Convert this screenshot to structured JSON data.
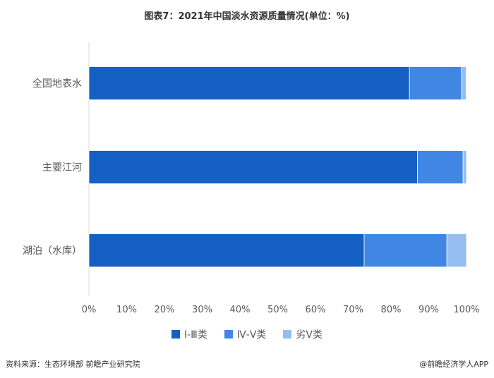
{
  "title": "图表7：2021年中国淡水资源质量情况(单位：%)",
  "source": "资料来源：生态环境部 前瞻产业研究院",
  "brand": "@前瞻经济学人APP",
  "chart_data": {
    "type": "bar",
    "orientation": "horizontal",
    "stacked": true,
    "categories": [
      "全国地表水",
      "主要江河",
      "湖泊（水库）"
    ],
    "series": [
      {
        "name": "Ⅰ-Ⅲ类",
        "color": "#1560C4",
        "values": [
          84.9,
          87.0,
          72.9
        ]
      },
      {
        "name": "Ⅳ-Ⅴ类",
        "color": "#3F87E3",
        "values": [
          13.8,
          12.1,
          21.9
        ]
      },
      {
        "name": "劣Ⅴ类",
        "color": "#94BDF2",
        "values": [
          1.2,
          0.9,
          5.2
        ]
      }
    ],
    "xlim": [
      0,
      100
    ],
    "xticks": [
      "0%",
      "10%",
      "20%",
      "30%",
      "40%",
      "50%",
      "60%",
      "70%",
      "80%",
      "90%",
      "100%"
    ],
    "grid": false,
    "legend_position": "bottom"
  }
}
